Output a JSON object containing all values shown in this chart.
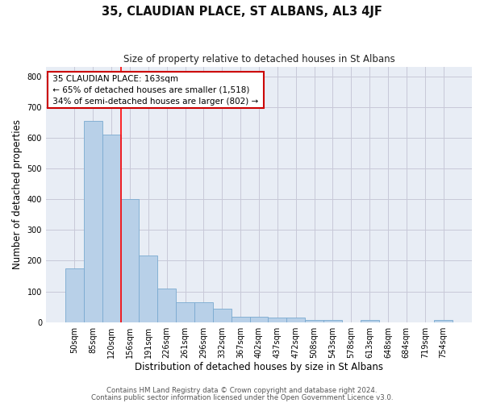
{
  "title": "35, CLAUDIAN PLACE, ST ALBANS, AL3 4JF",
  "subtitle": "Size of property relative to detached houses in St Albans",
  "xlabel": "Distribution of detached houses by size in St Albans",
  "ylabel": "Number of detached properties",
  "footer_line1": "Contains HM Land Registry data © Crown copyright and database right 2024.",
  "footer_line2": "Contains public sector information licensed under the Open Government Licence v3.0.",
  "categories": [
    "50sqm",
    "85sqm",
    "120sqm",
    "156sqm",
    "191sqm",
    "226sqm",
    "261sqm",
    "296sqm",
    "332sqm",
    "367sqm",
    "402sqm",
    "437sqm",
    "472sqm",
    "508sqm",
    "543sqm",
    "578sqm",
    "613sqm",
    "648sqm",
    "684sqm",
    "719sqm",
    "754sqm"
  ],
  "values": [
    175,
    655,
    610,
    400,
    218,
    110,
    65,
    65,
    45,
    18,
    17,
    15,
    14,
    6,
    6,
    0,
    8,
    0,
    0,
    0,
    7
  ],
  "bar_color": "#b8d0e8",
  "bar_edge_color": "#7aaad0",
  "red_line_x": 2.5,
  "annotation_title": "35 CLAUDIAN PLACE: 163sqm",
  "annotation_line2": "← 65% of detached houses are smaller (1,518)",
  "annotation_line3": "34% of semi-detached houses are larger (802) →",
  "annotation_box_color": "#ffffff",
  "annotation_border_color": "#cc0000",
  "ylim": [
    0,
    830
  ],
  "yticks": [
    0,
    100,
    200,
    300,
    400,
    500,
    600,
    700,
    800
  ],
  "grid_color": "#c8c8d8",
  "bg_color": "#e8edf5"
}
